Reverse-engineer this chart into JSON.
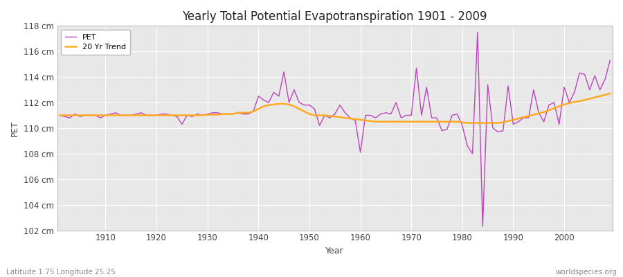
{
  "title": "Yearly Total Potential Evapotranspiration 1901 - 2009",
  "xlabel": "Year",
  "ylabel": "PET",
  "subtitle_left": "Latitude 1.75 Longitude 25.25",
  "subtitle_right": "worldspecies.org",
  "pet_color": "#bb44bb",
  "trend_color": "#ffaa22",
  "background_color": "#ffffff",
  "plot_bg_color": "#e8e8e8",
  "ylim": [
    102,
    118
  ],
  "yticks": [
    102,
    104,
    106,
    108,
    110,
    112,
    114,
    116,
    118
  ],
  "xticks": [
    1910,
    1920,
    1930,
    1940,
    1950,
    1960,
    1970,
    1980,
    1990,
    2000
  ],
  "years": [
    1901,
    1902,
    1903,
    1904,
    1905,
    1906,
    1907,
    1908,
    1909,
    1910,
    1911,
    1912,
    1913,
    1914,
    1915,
    1916,
    1917,
    1918,
    1919,
    1920,
    1921,
    1922,
    1923,
    1924,
    1925,
    1926,
    1927,
    1928,
    1929,
    1930,
    1931,
    1932,
    1933,
    1934,
    1935,
    1936,
    1937,
    1938,
    1939,
    1940,
    1941,
    1942,
    1943,
    1944,
    1945,
    1946,
    1947,
    1948,
    1949,
    1950,
    1951,
    1952,
    1953,
    1954,
    1955,
    1956,
    1957,
    1958,
    1959,
    1960,
    1961,
    1962,
    1963,
    1964,
    1965,
    1966,
    1967,
    1968,
    1969,
    1970,
    1971,
    1972,
    1973,
    1974,
    1975,
    1976,
    1977,
    1978,
    1979,
    1980,
    1981,
    1982,
    1983,
    1984,
    1985,
    1986,
    1987,
    1988,
    1989,
    1990,
    1991,
    1992,
    1993,
    1994,
    1995,
    1996,
    1997,
    1998,
    1999,
    2000,
    2001,
    2002,
    2003,
    2004,
    2005,
    2006,
    2007,
    2008,
    2009
  ],
  "pet_values": [
    111.0,
    110.9,
    110.8,
    111.1,
    110.9,
    111.0,
    111.0,
    111.0,
    110.8,
    111.0,
    111.1,
    111.2,
    111.0,
    111.0,
    111.0,
    111.1,
    111.2,
    111.0,
    111.0,
    111.0,
    111.1,
    111.1,
    111.0,
    110.9,
    110.3,
    111.0,
    110.9,
    111.1,
    111.0,
    111.1,
    111.2,
    111.2,
    111.1,
    111.1,
    111.1,
    111.2,
    111.1,
    111.1,
    111.3,
    112.5,
    112.2,
    112.0,
    112.8,
    112.5,
    114.4,
    112.0,
    113.0,
    112.0,
    111.8,
    111.8,
    111.5,
    110.2,
    111.0,
    110.8,
    111.1,
    111.8,
    111.2,
    110.8,
    110.6,
    108.1,
    111.0,
    111.0,
    110.8,
    111.1,
    111.2,
    111.1,
    112.0,
    110.8,
    111.0,
    111.0,
    114.7,
    111.0,
    113.2,
    110.8,
    110.8,
    109.8,
    109.9,
    111.0,
    111.1,
    110.2,
    108.6,
    108.0,
    117.5,
    102.3,
    113.4,
    110.0,
    109.7,
    109.8,
    113.3,
    110.3,
    110.5,
    110.8,
    110.8,
    113.0,
    111.2,
    110.5,
    111.8,
    112.0,
    110.3,
    113.2,
    112.0,
    112.8,
    114.3,
    114.2,
    113.0,
    114.1,
    113.0,
    113.8,
    115.3
  ],
  "trend_values": [
    111.0,
    111.0,
    111.0,
    111.0,
    111.0,
    111.0,
    111.0,
    111.0,
    111.0,
    111.0,
    111.0,
    111.0,
    111.0,
    111.0,
    111.0,
    111.0,
    111.0,
    111.0,
    111.0,
    111.0,
    111.0,
    111.0,
    111.0,
    111.0,
    111.0,
    111.0,
    111.0,
    111.0,
    111.0,
    111.05,
    111.05,
    111.05,
    111.1,
    111.1,
    111.1,
    111.2,
    111.2,
    111.2,
    111.3,
    111.5,
    111.7,
    111.8,
    111.85,
    111.9,
    111.9,
    111.85,
    111.7,
    111.5,
    111.3,
    111.1,
    111.0,
    111.0,
    111.0,
    110.95,
    110.9,
    110.85,
    110.8,
    110.75,
    110.7,
    110.65,
    110.6,
    110.55,
    110.5,
    110.5,
    110.5,
    110.5,
    110.5,
    110.5,
    110.5,
    110.5,
    110.5,
    110.5,
    110.5,
    110.5,
    110.5,
    110.5,
    110.5,
    110.5,
    110.5,
    110.45,
    110.4,
    110.4,
    110.4,
    110.4,
    110.4,
    110.4,
    110.4,
    110.45,
    110.55,
    110.65,
    110.75,
    110.85,
    110.95,
    111.05,
    111.15,
    111.25,
    111.4,
    111.55,
    111.7,
    111.85,
    111.95,
    112.05,
    112.1,
    112.2,
    112.3,
    112.4,
    112.5,
    112.6,
    112.7
  ]
}
